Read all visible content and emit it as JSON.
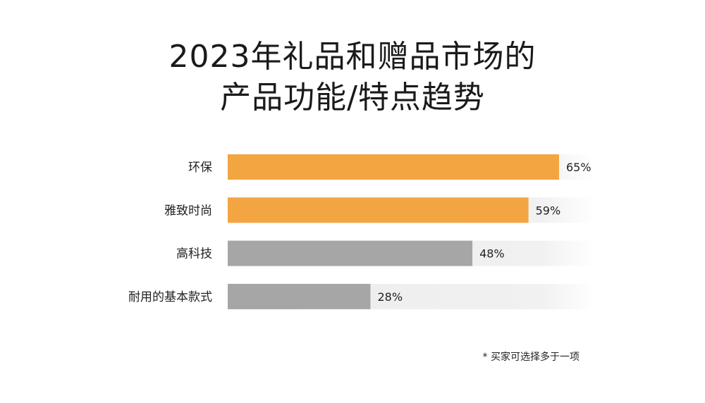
{
  "title_line1": "2023年礼品和赠品市场的",
  "title_line2": "产品功能/特点趋势",
  "footnote": "* 买家可选择多于一项",
  "colors": {
    "highlight": "#f2a541",
    "neutral": "#a6a6a6",
    "track": "#eeeeee"
  },
  "chart_data": {
    "type": "bar",
    "orientation": "horizontal",
    "categories": [
      "环保",
      "雅致时尚",
      "高科技",
      "耐用的基本款式"
    ],
    "values": [
      65,
      59,
      48,
      28
    ],
    "value_labels": [
      "65%",
      "59%",
      "48%",
      "28%"
    ],
    "highlighted": [
      true,
      true,
      false,
      false
    ],
    "xlim": [
      0,
      100
    ],
    "unit": "%",
    "title": "2023年礼品和赠品市场的 产品功能/特点趋势",
    "grid": false
  }
}
